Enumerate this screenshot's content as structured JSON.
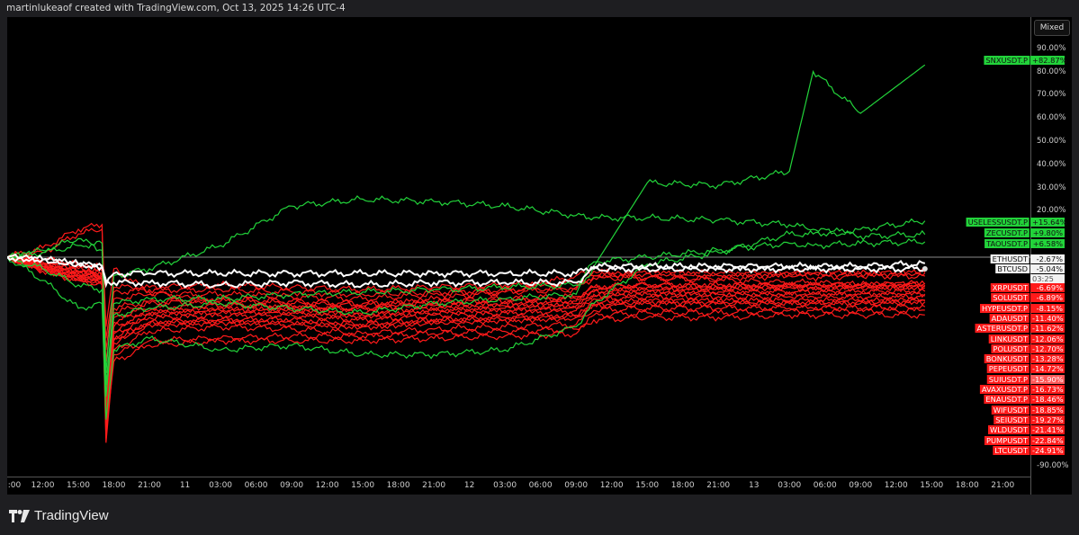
{
  "header": {
    "text": "martinlukeaof created with TradingView.com, Oct 13, 2025 14:26 UTC-4"
  },
  "scale_button": "Mixed",
  "countdown": "03:25",
  "brand": {
    "name": "TradingView"
  },
  "colors": {
    "background": "#000000",
    "up": "#22d33a",
    "down": "#ff1a1a",
    "neutral": "#ffffff",
    "baseline": "#8a8a8a"
  },
  "chart_data": {
    "type": "line",
    "title": "",
    "xlabel": "",
    "ylabel": "",
    "ylim": [
      -94,
      103
    ],
    "xlim": [
      "2025-10-10 09:00",
      "2025-10-13 23:00"
    ],
    "grid": false,
    "y_ticks": [
      {
        "v": 90,
        "label": "90.00%"
      },
      {
        "v": 80,
        "label": "80.00%"
      },
      {
        "v": 70,
        "label": "70.00%"
      },
      {
        "v": 60,
        "label": "60.00%"
      },
      {
        "v": 50,
        "label": "50.00%"
      },
      {
        "v": 40,
        "label": "40.00%"
      },
      {
        "v": 30,
        "label": "30.00%"
      },
      {
        "v": 20,
        "label": "20.00%"
      },
      {
        "v": -90,
        "label": "-90.00%"
      }
    ],
    "x_ticks": [
      {
        "t": "2025-10-10 09:00",
        "label": ":00"
      },
      {
        "t": "2025-10-10 12:00",
        "label": "12:00"
      },
      {
        "t": "2025-10-10 15:00",
        "label": "15:00"
      },
      {
        "t": "2025-10-10 18:00",
        "label": "18:00"
      },
      {
        "t": "2025-10-10 21:00",
        "label": "21:00"
      },
      {
        "t": "2025-10-11 00:00",
        "label": "11"
      },
      {
        "t": "2025-10-11 03:00",
        "label": "03:00"
      },
      {
        "t": "2025-10-11 06:00",
        "label": "06:00"
      },
      {
        "t": "2025-10-11 09:00",
        "label": "09:00"
      },
      {
        "t": "2025-10-11 12:00",
        "label": "12:00"
      },
      {
        "t": "2025-10-11 15:00",
        "label": "15:00"
      },
      {
        "t": "2025-10-11 18:00",
        "label": "18:00"
      },
      {
        "t": "2025-10-11 21:00",
        "label": "21:00"
      },
      {
        "t": "2025-10-12 00:00",
        "label": "12"
      },
      {
        "t": "2025-10-12 03:00",
        "label": "03:00"
      },
      {
        "t": "2025-10-12 06:00",
        "label": "06:00"
      },
      {
        "t": "2025-10-12 09:00",
        "label": "09:00"
      },
      {
        "t": "2025-10-12 12:00",
        "label": "12:00"
      },
      {
        "t": "2025-10-12 15:00",
        "label": "15:00"
      },
      {
        "t": "2025-10-12 18:00",
        "label": "18:00"
      },
      {
        "t": "2025-10-12 21:00",
        "label": "21:00"
      },
      {
        "t": "2025-10-13 00:00",
        "label": "13"
      },
      {
        "t": "2025-10-13 03:00",
        "label": "03:00"
      },
      {
        "t": "2025-10-13 06:00",
        "label": "06:00"
      },
      {
        "t": "2025-10-13 09:00",
        "label": "09:00"
      },
      {
        "t": "2025-10-13 12:00",
        "label": "12:00"
      },
      {
        "t": "2025-10-13 15:00",
        "label": "15:00"
      },
      {
        "t": "2025-10-13 18:00",
        "label": "18:00"
      },
      {
        "t": "2025-10-13 21:00",
        "label": "21:00"
      }
    ],
    "x": [
      "2025-10-10 09:00",
      "2025-10-10 12:00",
      "2025-10-10 15:00",
      "2025-10-10 17:00",
      "2025-10-10 17:20",
      "2025-10-10 18:00",
      "2025-10-10 21:00",
      "2025-10-11 03:00",
      "2025-10-11 09:00",
      "2025-10-11 15:00",
      "2025-10-11 21:00",
      "2025-10-12 03:00",
      "2025-10-12 09:00",
      "2025-10-12 10:30",
      "2025-10-12 15:00",
      "2025-10-12 21:00",
      "2025-10-13 03:00",
      "2025-10-13 05:00",
      "2025-10-13 09:00",
      "2025-10-13 14:26"
    ],
    "series": [
      {
        "name": "SNXUSDT.P",
        "last": "+82.87%",
        "trend": "up",
        "values": [
          0,
          -5,
          -12,
          -14,
          -60,
          -25,
          -22,
          -20,
          -22,
          -24,
          -20,
          -18,
          -16,
          -4,
          32,
          31,
          37,
          80,
          62,
          82.87
        ]
      },
      {
        "name": "USELESSUSDT.P",
        "last": "+15.64%",
        "trend": "up",
        "values": [
          0,
          -10,
          -22,
          -20,
          -70,
          -40,
          -35,
          -40,
          -38,
          -42,
          -42,
          -40,
          -30,
          -20,
          -3,
          2,
          10,
          10,
          12,
          15.64
        ]
      },
      {
        "name": "ZECUSDT.P",
        "last": "+9.80%",
        "trend": "up",
        "values": [
          0,
          3,
          8,
          3,
          -50,
          -8,
          -5,
          5,
          22,
          25,
          24,
          22,
          18,
          17,
          17,
          16,
          14,
          12,
          9,
          9.8
        ]
      },
      {
        "name": "TAOUSDT.P",
        "last": "+6.58%",
        "trend": "up",
        "values": [
          0,
          2,
          5,
          6,
          -55,
          -20,
          -18,
          -18,
          -16,
          -15,
          -14,
          -13,
          -12,
          -2,
          0,
          3,
          6,
          5,
          6,
          6.58
        ]
      },
      {
        "name": "ETHUSDT",
        "last": "-2.67%",
        "trend": "neutral",
        "values": [
          0,
          -1,
          -3,
          -4,
          -12,
          -7,
          -7,
          -7,
          -7,
          -7,
          -7,
          -7,
          -7,
          -4,
          -4,
          -4,
          -4,
          -4,
          -4,
          -2.67
        ]
      },
      {
        "name": "BTCUSD",
        "last": "-5.04%",
        "trend": "neutral",
        "values": [
          0,
          -1,
          -3,
          -4,
          -10,
          -11,
          -11,
          -12,
          -11,
          -12,
          -11,
          -11,
          -11,
          -5,
          -5,
          -5,
          -5,
          -5,
          -5,
          -5.04
        ]
      },
      {
        "name": "XRPUSDT",
        "last": "-6.69%",
        "trend": "down",
        "values": [
          0,
          -2,
          -4,
          -5,
          -40,
          -15,
          -14,
          -14,
          -15,
          -16,
          -15,
          -14,
          -13,
          -8,
          -7,
          -7,
          -7,
          -7,
          -7,
          -6.69
        ]
      },
      {
        "name": "SOLUSDT",
        "last": "-6.89%",
        "trend": "down",
        "values": [
          0,
          -1,
          -3,
          -4,
          -35,
          -13,
          -13,
          -12,
          -13,
          -14,
          -13,
          -12,
          -11,
          -8,
          -7,
          -8,
          -7,
          -7,
          -7,
          -6.89
        ]
      },
      {
        "name": "HYPEUSDT.P",
        "last": "-8.15%",
        "trend": "down",
        "values": [
          0,
          -3,
          -6,
          -7,
          -45,
          -18,
          -16,
          -16,
          -17,
          -18,
          -16,
          -15,
          -14,
          -9,
          -9,
          -9,
          -8,
          -9,
          -8,
          -8.15
        ]
      },
      {
        "name": "ADAUSDT",
        "last": "-11.40%",
        "trend": "down",
        "values": [
          0,
          -3,
          -5,
          -6,
          -55,
          -22,
          -19,
          -18,
          -19,
          -20,
          -19,
          -18,
          -17,
          -13,
          -12,
          -12,
          -12,
          -12,
          -12,
          -11.4
        ]
      },
      {
        "name": "ASTERUSDT.P",
        "last": "-11.62%",
        "trend": "down",
        "values": [
          0,
          2,
          10,
          12,
          -30,
          -5,
          -15,
          -20,
          -22,
          -22,
          -18,
          -15,
          -8,
          -6,
          -9,
          -10,
          -11,
          -11,
          -12,
          -11.62
        ]
      },
      {
        "name": "LINKUSDT",
        "last": "-12.06%",
        "trend": "down",
        "values": [
          0,
          -3,
          -6,
          -7,
          -58,
          -24,
          -20,
          -19,
          -20,
          -21,
          -20,
          -19,
          -18,
          -13,
          -12,
          -13,
          -12,
          -12,
          -12,
          -12.06
        ]
      },
      {
        "name": "POLUSDT",
        "last": "-12.70%",
        "trend": "down",
        "values": [
          0,
          -3,
          -6,
          -8,
          -60,
          -26,
          -22,
          -21,
          -21,
          -22,
          -21,
          -20,
          -19,
          -14,
          -13,
          -13,
          -13,
          -13,
          -13,
          -12.7
        ]
      },
      {
        "name": "BONKUSDT",
        "last": "-13.28%",
        "trend": "down",
        "values": [
          0,
          -4,
          -7,
          -8,
          -62,
          -28,
          -23,
          -22,
          -22,
          -24,
          -22,
          -21,
          -20,
          -15,
          -14,
          -14,
          -13,
          -14,
          -13,
          -13.28
        ]
      },
      {
        "name": "PEPEUSDT",
        "last": "-14.72%",
        "trend": "down",
        "values": [
          0,
          -4,
          -7,
          -9,
          -65,
          -30,
          -24,
          -23,
          -23,
          -25,
          -23,
          -22,
          -21,
          -16,
          -15,
          -15,
          -15,
          -15,
          -15,
          -14.72
        ]
      },
      {
        "name": "SUIUSDT.P",
        "last": "-15.90%",
        "trend": "down",
        "values": [
          0,
          -4,
          -8,
          -9,
          -68,
          -32,
          -25,
          -24,
          -24,
          -26,
          -24,
          -23,
          -22,
          -17,
          -16,
          -16,
          -16,
          -16,
          -16,
          -15.9
        ]
      },
      {
        "name": "AVAXUSDT.P",
        "last": "-16.73%",
        "trend": "down",
        "values": [
          0,
          -4,
          -8,
          -9,
          -70,
          -33,
          -26,
          -25,
          -25,
          -27,
          -25,
          -24,
          -23,
          -18,
          -17,
          -17,
          -17,
          -17,
          -17,
          -16.73
        ]
      },
      {
        "name": "ENAUSDT.P",
        "last": "-18.46%",
        "trend": "down",
        "values": [
          0,
          -5,
          -9,
          -10,
          -72,
          -35,
          -28,
          -27,
          -27,
          -29,
          -27,
          -26,
          -25,
          -20,
          -19,
          -19,
          -19,
          -19,
          -19,
          -18.46
        ]
      },
      {
        "name": "WIFUSDT",
        "last": "-18.85%",
        "trend": "down",
        "values": [
          0,
          -5,
          -9,
          -10,
          -73,
          -36,
          -29,
          -28,
          -28,
          -30,
          -28,
          -27,
          -26,
          -20,
          -19,
          -19,
          -19,
          -19,
          -19,
          -18.85
        ]
      },
      {
        "name": "SEIUSDT",
        "last": "-19.27%",
        "trend": "down",
        "values": [
          0,
          -5,
          -9,
          -11,
          -74,
          -37,
          -29,
          -28,
          -29,
          -30,
          -28,
          -27,
          -26,
          -21,
          -20,
          -20,
          -20,
          -20,
          -20,
          -19.27
        ]
      },
      {
        "name": "WLDUSDT",
        "last": "-21.41%",
        "trend": "down",
        "values": [
          0,
          -5,
          -10,
          -11,
          -78,
          -40,
          -32,
          -30,
          -31,
          -33,
          -31,
          -30,
          -29,
          -23,
          -22,
          -22,
          -22,
          -22,
          -22,
          -21.41
        ]
      },
      {
        "name": "PUMPUSDT",
        "last": "-22.84%",
        "trend": "down",
        "values": [
          0,
          -6,
          -10,
          -12,
          -80,
          -42,
          -36,
          -35,
          -34,
          -34,
          -33,
          -32,
          -31,
          -25,
          -24,
          -24,
          -23,
          -23,
          -23,
          -22.84
        ]
      },
      {
        "name": "LTCUSDT",
        "last": "-24.91%",
        "trend": "down",
        "values": [
          0,
          4,
          12,
          14,
          -75,
          -45,
          -38,
          -36,
          -36,
          -36,
          -35,
          -34,
          -33,
          -27,
          -26,
          -26,
          -25,
          -25,
          -25,
          -24.91
        ]
      }
    ]
  }
}
